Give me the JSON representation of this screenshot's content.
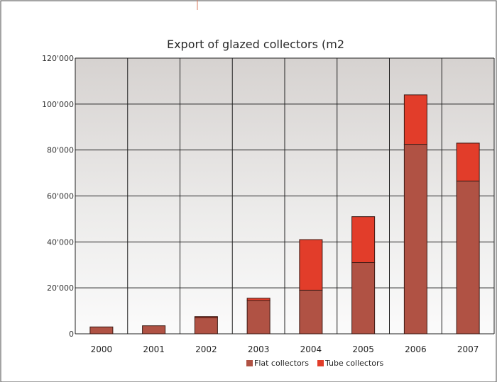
{
  "chart_data": {
    "type": "bar",
    "stacked": true,
    "title": "Export of glazed collectors (m2",
    "xlabel": "",
    "ylabel": "",
    "categories": [
      "2000",
      "2001",
      "2002",
      "2003",
      "2004",
      "2005",
      "2006",
      "2007"
    ],
    "series": [
      {
        "name": "Flat collectors",
        "color": "#b05244",
        "values": [
          3000,
          3500,
          7000,
          14500,
          19000,
          31000,
          82500,
          66500
        ]
      },
      {
        "name": "Tube collectors",
        "color": "#e23d2a",
        "values": [
          0,
          0,
          500,
          1000,
          22000,
          20000,
          21500,
          16500
        ]
      }
    ],
    "ylim": [
      0,
      120000
    ],
    "yticks": [
      {
        "value": 0,
        "label": "0"
      },
      {
        "value": 20000,
        "label": "20'000"
      },
      {
        "value": 40000,
        "label": "40'000"
      },
      {
        "value": 60000,
        "label": "60'000"
      },
      {
        "value": 80000,
        "label": "80'000"
      },
      {
        "value": 100000,
        "label": "100'000"
      },
      {
        "value": 120000,
        "label": "120'000"
      }
    ],
    "grid": true,
    "legend_position": "bottom-right"
  }
}
